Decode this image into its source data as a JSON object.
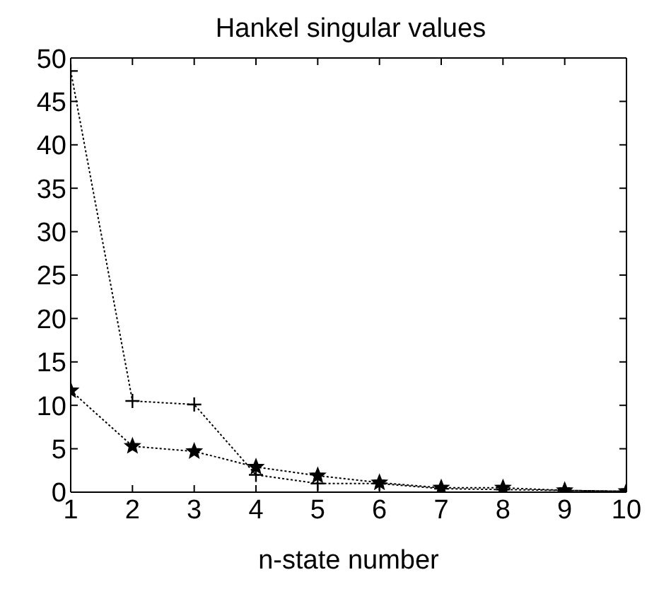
{
  "chart_data": {
    "type": "line",
    "title": "Hankel singular values",
    "xlabel": "n-state number",
    "x": [
      1,
      2,
      3,
      4,
      5,
      6,
      7,
      8,
      9,
      10
    ],
    "series": [
      {
        "color": "#000000",
        "marker": "cross",
        "values": [
          48.5,
          10.5,
          10.1,
          2.0,
          1.0,
          1.0,
          0.4,
          0.3,
          0.2,
          0.1
        ]
      },
      {
        "color": "#000000",
        "marker": "star",
        "values": [
          11.7,
          5.3,
          4.7,
          2.9,
          1.9,
          1.1,
          0.5,
          0.5,
          0.2,
          0.1
        ]
      }
    ],
    "line_style": "dotted",
    "grid": false,
    "legend": false,
    "xlim": [
      1,
      10
    ],
    "xticks": [
      1,
      2,
      3,
      4,
      5,
      6,
      7,
      8,
      9,
      10
    ],
    "ylim": [
      0,
      50
    ],
    "yticks": [
      0,
      5,
      10,
      15,
      20,
      25,
      30,
      35,
      40,
      45,
      50
    ]
  }
}
